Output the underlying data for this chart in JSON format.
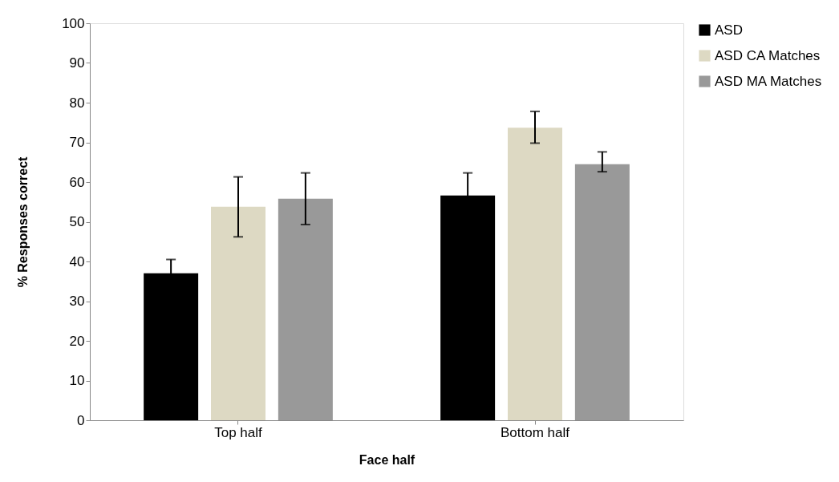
{
  "chart_data": {
    "type": "bar",
    "xlabel": "Face half",
    "ylabel": "% Responses correct",
    "categories": [
      "Top half",
      "Bottom half"
    ],
    "series": [
      {
        "name": "ASD",
        "color": "#000000",
        "values": [
          37,
          56.6
        ],
        "errors": [
          3.5,
          5.7
        ]
      },
      {
        "name": "ASD CA Matches",
        "color": "#ddd9c3",
        "values": [
          53.8,
          73.7
        ],
        "errors": [
          [
            46.2,
            61.3
          ],
          [
            69.8,
            77.8
          ]
        ]
      },
      {
        "name": "ASD MA Matches",
        "color": "#999999",
        "values": [
          55.8,
          64.5
        ],
        "errors": [
          [
            49.3,
            62.3
          ],
          [
            62.6,
            67.6
          ]
        ]
      }
    ],
    "ylim": [
      0,
      100
    ],
    "yticks": [
      0,
      10,
      20,
      30,
      40,
      50,
      60,
      70,
      80,
      90,
      100
    ],
    "grid": false,
    "legend": "right"
  }
}
